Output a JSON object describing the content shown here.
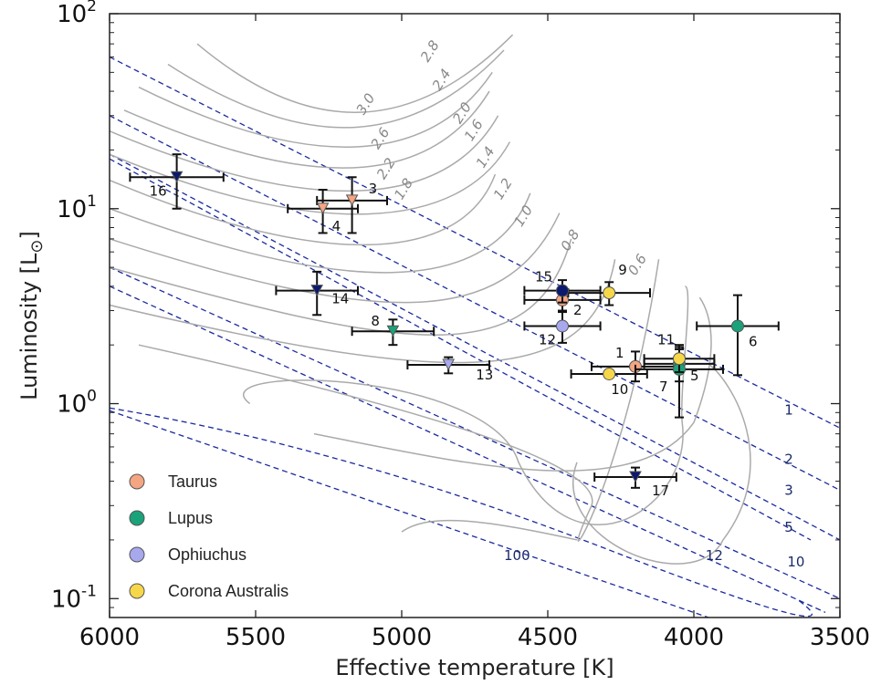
{
  "chart_data": {
    "type": "scatter",
    "title": "",
    "xlabel": "Effective temperature [K]",
    "ylabel": "Luminosity [L",
    "ylabel_sub": "⊙",
    "ylabel_close": "]",
    "xlim": [
      6000,
      3500
    ],
    "ylim": [
      0.08,
      100
    ],
    "y_scale": "log",
    "x_ticks": [
      "6000",
      "5500",
      "5000",
      "4500",
      "4000",
      "3500"
    ],
    "y_ticks": [
      {
        "value": 100,
        "base": "10",
        "exp": "2"
      },
      {
        "value": 10,
        "base": "10",
        "exp": "1"
      },
      {
        "value": 1,
        "base": "10",
        "exp": "0"
      },
      {
        "value": 0.1,
        "base": "10",
        "exp": "-1"
      }
    ],
    "legend": {
      "position": "lower-left",
      "entries": [
        {
          "name": "Taurus",
          "color": "#f4a582"
        },
        {
          "name": "Lupus",
          "color": "#1aa37a"
        },
        {
          "name": "Ophiuchus",
          "color": "#a8a8ee"
        },
        {
          "name": "Corona Australis",
          "color": "#f7d74a"
        }
      ]
    },
    "colors": {
      "taurus": "#f4a582",
      "lupus": "#1aa37a",
      "ophiuchus": "#a8a8ee",
      "corona_australis": "#f7d74a",
      "upper_limit_dark": "#0b1a6e",
      "isochrone": "#1a2a9e",
      "track": "#aaaaaa"
    },
    "points": [
      {
        "id": "1",
        "teff": 4200,
        "lum": 1.55,
        "xerr": 150,
        "lerr": [
          0.25,
          0.3
        ],
        "color": "#f4a582",
        "marker": "circle"
      },
      {
        "id": "2",
        "teff": 4450,
        "lum": 3.4,
        "xerr": 130,
        "lerr": [
          0.4,
          0.4
        ],
        "color": "#f4a582",
        "marker": "circle"
      },
      {
        "id": "3",
        "teff": 5170,
        "lum": 11.0,
        "xerr": 120,
        "lerr": [
          3.5,
          3.5
        ],
        "color": "#f4a582",
        "marker": "tri"
      },
      {
        "id": "4",
        "teff": 5270,
        "lum": 10.0,
        "xerr": 120,
        "lerr": [
          2.5,
          2.5
        ],
        "color": "#f4a582",
        "marker": "tri"
      },
      {
        "id": "5",
        "teff": 4050,
        "lum": 1.6,
        "xerr": 120,
        "lerr": [
          0.3,
          0.3
        ],
        "color": "#1aa37a",
        "marker": "circle"
      },
      {
        "id": "6",
        "teff": 3850,
        "lum": 2.5,
        "xerr": 140,
        "lerr": [
          1.1,
          1.1
        ],
        "color": "#1aa37a",
        "marker": "circle"
      },
      {
        "id": "7",
        "teff": 4050,
        "lum": 1.5,
        "xerr": 150,
        "lerr": [
          0.65,
          0.5
        ],
        "color": "#1aa37a",
        "marker": "circle"
      },
      {
        "id": "8",
        "teff": 5030,
        "lum": 2.35,
        "xerr": 140,
        "lerr": [
          0.35,
          0.35
        ],
        "color": "#1aa37a",
        "marker": "tri"
      },
      {
        "id": "9",
        "teff": 4290,
        "lum": 3.7,
        "xerr": 140,
        "lerr": [
          0.5,
          0.5
        ],
        "color": "#f7d74a",
        "marker": "circle"
      },
      {
        "id": "10",
        "teff": 4290,
        "lum": 1.42,
        "xerr": 130,
        "lerr": [
          0,
          0
        ],
        "color": "#f7d74a",
        "marker": "circle"
      },
      {
        "id": "11",
        "teff": 4050,
        "lum": 1.7,
        "xerr": 120,
        "lerr": [
          0.25,
          0.25
        ],
        "color": "#f7d74a",
        "marker": "circle"
      },
      {
        "id": "12",
        "teff": 4450,
        "lum": 2.5,
        "xerr": 130,
        "lerr": [
          0.45,
          0.45
        ],
        "color": "#a8a8ee",
        "marker": "circle"
      },
      {
        "id": "13",
        "teff": 4840,
        "lum": 1.58,
        "xerr": 140,
        "lerr": [
          0.15,
          0.15
        ],
        "color": "#a8a8ee",
        "marker": "tri"
      },
      {
        "id": "14",
        "teff": 5290,
        "lum": 3.8,
        "xerr": 140,
        "lerr": [
          0.95,
          0.95
        ],
        "color": "#0b1a6e",
        "marker": "tri"
      },
      {
        "id": "15",
        "teff": 4450,
        "lum": 3.8,
        "xerr": 130,
        "lerr": [
          0.5,
          0.5
        ],
        "color": "#0b1a6e",
        "marker": "circle"
      },
      {
        "id": "16",
        "teff": 5770,
        "lum": 14.5,
        "xerr": 160,
        "lerr": [
          4.5,
          4.5
        ],
        "color": "#0b1a6e",
        "marker": "tri"
      },
      {
        "id": "17",
        "teff": 4200,
        "lum": 0.42,
        "xerr": 140,
        "lerr": [
          0.05,
          0.05
        ],
        "color": "#0b1a6e",
        "marker": "tri"
      }
    ],
    "mass_track_labels": [
      "3.0",
      "2.8",
      "2.6",
      "2.4",
      "2.2",
      "2.0",
      "1.8",
      "1.6",
      "1.4",
      "1.2",
      "1.0",
      "0.8",
      "0.6"
    ],
    "isochrone_labels": [
      "1",
      "2",
      "3",
      "5",
      "10",
      "12",
      "100"
    ]
  }
}
